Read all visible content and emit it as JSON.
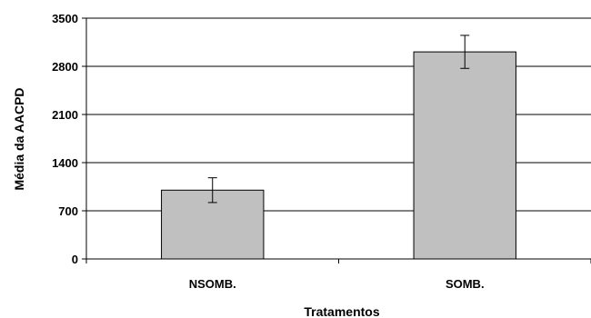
{
  "chart_data": {
    "type": "bar",
    "title": "",
    "xlabel": "Tratamentos",
    "ylabel": "Média da AACPD",
    "categories": [
      "NSOMB.",
      "SOMB."
    ],
    "values": [
      1000,
      3010
    ],
    "error": [
      180,
      240
    ],
    "ylim": [
      0,
      3500
    ],
    "yticks": [
      0,
      700,
      1400,
      2100,
      2800,
      3500
    ],
    "grid": true,
    "legend": "none",
    "bar_color": "#c0c0c0"
  }
}
